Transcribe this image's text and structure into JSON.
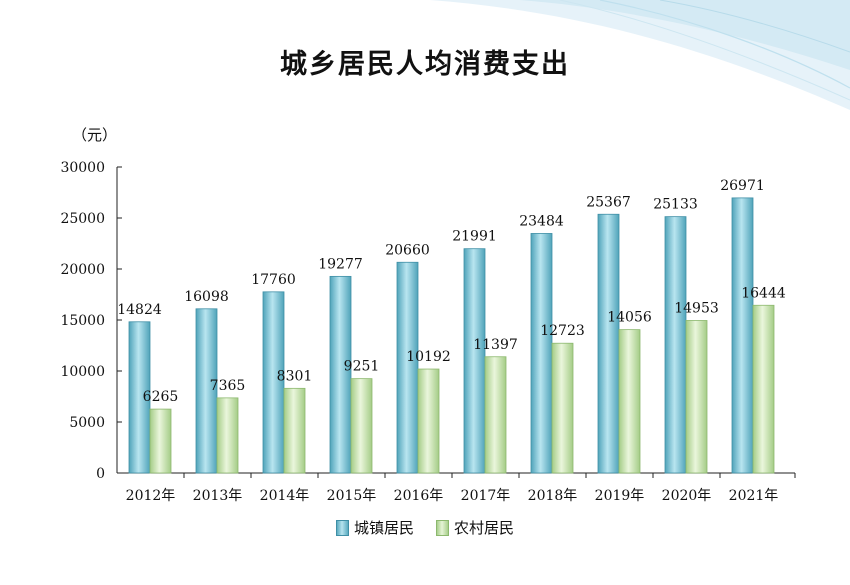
{
  "title": "城乡居民人均消费支出",
  "unit": "（元）",
  "colors": {
    "urban": "#6fbccf",
    "urban_edge": "#3f8fa6",
    "rural": "#c3e0a8",
    "rural_edge": "#8cb86e",
    "deco": "#d6ecf6"
  },
  "legend": [
    {
      "label": "城镇居民",
      "key": "urban"
    },
    {
      "label": "农村居民",
      "key": "rural"
    }
  ],
  "chart_data": {
    "type": "bar",
    "title": "城乡居民人均消费支出",
    "ylabel": "（元）",
    "xlabel": "",
    "categories": [
      "2012年",
      "2013年",
      "2014年",
      "2015年",
      "2016年",
      "2017年",
      "2018年",
      "2019年",
      "2020年",
      "2021年"
    ],
    "series": [
      {
        "name": "城镇居民",
        "values": [
          14824,
          16098,
          17760,
          19277,
          20660,
          21991,
          23484,
          25367,
          25133,
          26971
        ]
      },
      {
        "name": "农村居民",
        "values": [
          6265,
          7365,
          8301,
          9251,
          10192,
          11397,
          12723,
          14056,
          14953,
          16444
        ]
      }
    ],
    "ylim": [
      0,
      30000
    ],
    "yticks": [
      0,
      5000,
      10000,
      15000,
      20000,
      25000,
      30000
    ],
    "grid": false,
    "legend_position": "bottom"
  }
}
